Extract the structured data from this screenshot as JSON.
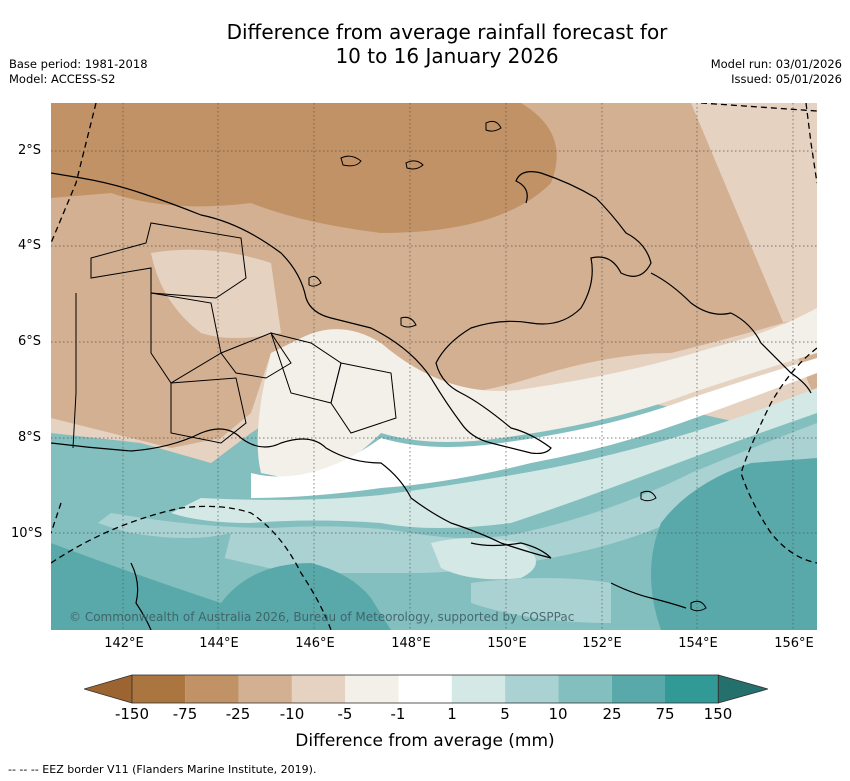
{
  "title": {
    "line1": "Difference from average rainfall forecast for",
    "line2": "10 to 16 January 2026"
  },
  "meta": {
    "base_period": "Base period: 1981-2018",
    "model": "Model: ACCESS-S2",
    "model_run": "Model run: 03/01/2026",
    "issued": "Issued: 05/01/2026"
  },
  "map": {
    "lat_labels": [
      "2°S",
      "4°S",
      "6°S",
      "8°S",
      "10°S"
    ],
    "lon_labels": [
      "142°E",
      "144°E",
      "146°E",
      "148°E",
      "150°E",
      "152°E",
      "154°E",
      "156°E"
    ],
    "copyright": "© Commonwealth of Australia 2026, Bureau of Meteorology, supported by COSPPac"
  },
  "colorbar": {
    "ticks": [
      "-150",
      "-75",
      "-25",
      "-10",
      "-5",
      "-1",
      "1",
      "5",
      "10",
      "25",
      "75",
      "150"
    ],
    "title": "Difference from average (mm)",
    "colors": {
      "lt_-150": "#9c6430",
      "-150_-75": "#ab7540",
      "-75_-25": "#c09266",
      "-25_-10": "#d2b091",
      "-10_-5": "#e6d2c1",
      "-5_-1": "#f3efe9",
      "-1_1": "#ffffff",
      "1_5": "#d4e8e6",
      "5_10": "#abd2d2",
      "10_25": "#84bfbf",
      "25_75": "#5aa9aa",
      "75_150": "#319a96",
      "gt_150": "#24706c"
    }
  },
  "legend": {
    "eez": "--  --  -- EEZ border V11 (Flanders Marine Institute, 2019)."
  }
}
